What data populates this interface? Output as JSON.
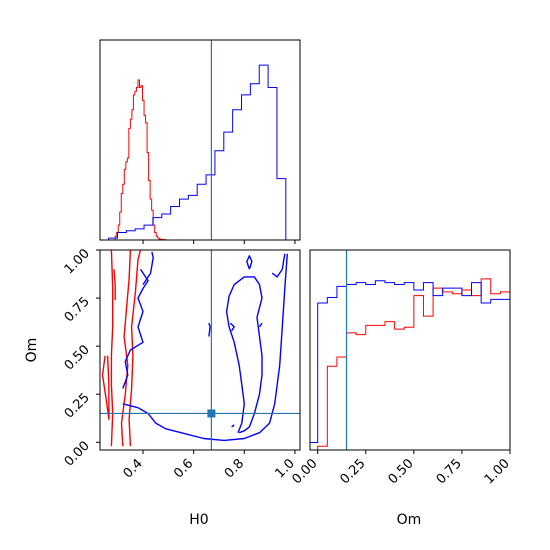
{
  "chart_data": {
    "type": "corner",
    "parameters": [
      "H0",
      "Om"
    ],
    "axis_labels": {
      "x": [
        "H0",
        "Om"
      ],
      "y": [
        "Om"
      ]
    },
    "truth": {
      "H0": 0.67,
      "Om": 0.15,
      "color": "#1f77b4"
    },
    "colors": {
      "red_series": "#ff0000",
      "blue_series": "#0000ff",
      "truth": "#1f77b4"
    },
    "panels": [
      {
        "id": "hist-H0",
        "type": "step-histogram",
        "x_range": [
          0.23,
          1.02
        ],
        "xticks": [
          0.4,
          0.6,
          0.8,
          1.0
        ],
        "tick_labels_shown": false,
        "series": [
          {
            "color": "#ff0000",
            "bin_edges": [
              0.29,
              0.296,
              0.302,
              0.308,
              0.314,
              0.32,
              0.326,
              0.332,
              0.338,
              0.344,
              0.35,
              0.356,
              0.362,
              0.368,
              0.374,
              0.38,
              0.386,
              0.392,
              0.398,
              0.404,
              0.41,
              0.416,
              0.422,
              0.428,
              0.434,
              0.44,
              0.446,
              0.452,
              0.458,
              0.464,
              0.47,
              0.476,
              0.482,
              0.488,
              0.494
            ],
            "counts": [
              0.02,
              0.04,
              0.08,
              0.15,
              0.25,
              0.3,
              0.38,
              0.42,
              0.44,
              0.6,
              0.65,
              0.7,
              0.78,
              0.8,
              0.82,
              0.86,
              0.82,
              0.83,
              0.75,
              0.67,
              0.63,
              0.47,
              0.32,
              0.22,
              0.16,
              0.08,
              0.04,
              0.02,
              0.01,
              0.005,
              0.005,
              0.002,
              0.002,
              0.001
            ]
          },
          {
            "color": "#0000ff",
            "bin_edges": [
              0.23,
              0.264,
              0.299,
              0.334,
              0.369,
              0.404,
              0.439,
              0.474,
              0.509,
              0.544,
              0.579,
              0.614,
              0.649,
              0.684,
              0.719,
              0.754,
              0.789,
              0.824,
              0.859,
              0.894,
              0.929,
              0.964,
              1.0
            ],
            "counts": [
              0.0,
              0.01,
              0.04,
              0.05,
              0.06,
              0.08,
              0.12,
              0.14,
              0.18,
              0.22,
              0.24,
              0.3,
              0.35,
              0.48,
              0.58,
              0.7,
              0.78,
              0.84,
              0.94,
              0.82,
              0.33,
              0.0
            ]
          }
        ]
      },
      {
        "id": "scatter-H0-Om",
        "type": "contour",
        "x_range": [
          0.23,
          1.02
        ],
        "y_range": [
          -0.04,
          1.0
        ],
        "xticks": [
          0.4,
          0.6,
          0.8,
          1.0
        ],
        "xtick_labels": [
          "0.4",
          "0.6",
          "0.8",
          "1.0"
        ],
        "yticks": [
          0.0,
          0.25,
          0.5,
          0.75,
          1.0
        ],
        "ytick_labels": [
          "0.00",
          "0.25",
          "0.50",
          "0.75",
          "1.00"
        ],
        "contours": [
          {
            "color": "#ff0000",
            "points": [
              [
                0.275,
                -0.02
              ],
              [
                0.28,
                0.15
              ],
              [
                0.275,
                0.3
              ],
              [
                0.275,
                0.45
              ],
              [
                0.28,
                0.6
              ],
              [
                0.28,
                0.8
              ],
              [
                0.275,
                1.0
              ]
            ]
          },
          {
            "color": "#ff0000",
            "points": [
              [
                0.25,
                0.45
              ],
              [
                0.24,
                0.35
              ],
              [
                0.255,
                0.22
              ],
              [
                0.265,
                0.12
              ],
              [
                0.265,
                0.3
              ],
              [
                0.26,
                0.45
              ]
            ]
          },
          {
            "color": "#ff0000",
            "points": [
              [
                0.35,
                -0.02
              ],
              [
                0.345,
                0.12
              ],
              [
                0.355,
                0.28
              ],
              [
                0.36,
                0.45
              ],
              [
                0.355,
                0.6
              ],
              [
                0.37,
                0.78
              ],
              [
                0.38,
                0.95
              ],
              [
                0.39,
                1.0
              ]
            ]
          },
          {
            "color": "#ff0000",
            "points": [
              [
                0.32,
                -0.02
              ],
              [
                0.315,
                0.1
              ],
              [
                0.33,
                0.25
              ],
              [
                0.34,
                0.4
              ],
              [
                0.325,
                0.55
              ],
              [
                0.335,
                0.7
              ],
              [
                0.345,
                0.85
              ],
              [
                0.35,
                1.0
              ]
            ]
          },
          {
            "color": "#ff0000",
            "points": [
              [
                0.285,
                0.9
              ],
              [
                0.29,
                0.82
              ],
              [
                0.29,
                0.74
              ]
            ]
          },
          {
            "color": "#0000ff",
            "points": [
              [
                0.4,
                0.82
              ],
              [
                0.43,
                0.88
              ],
              [
                0.44,
                0.96
              ],
              [
                0.435,
                0.99
              ]
            ]
          },
          {
            "color": "#0000ff",
            "points": [
              [
                0.32,
                0.2
              ],
              [
                0.38,
                0.18
              ],
              [
                0.42,
                0.15
              ],
              [
                0.45,
                0.1
              ],
              [
                0.49,
                0.07
              ],
              [
                0.55,
                0.05
              ],
              [
                0.64,
                0.02
              ],
              [
                0.72,
                0.01
              ],
              [
                0.8,
                0.02
              ],
              [
                0.86,
                0.05
              ],
              [
                0.9,
                0.1
              ],
              [
                0.92,
                0.2
              ],
              [
                0.94,
                0.4
              ],
              [
                0.95,
                0.6
              ],
              [
                0.96,
                0.8
              ],
              [
                0.97,
                0.98
              ]
            ]
          },
          {
            "color": "#0000ff",
            "points": [
              [
                0.32,
                0.28
              ],
              [
                0.34,
                0.35
              ],
              [
                0.33,
                0.42
              ],
              [
                0.35,
                0.48
              ],
              [
                0.4,
                0.52
              ],
              [
                0.38,
                0.6
              ],
              [
                0.4,
                0.68
              ],
              [
                0.38,
                0.75
              ],
              [
                0.4,
                0.8
              ],
              [
                0.42,
                0.84
              ],
              [
                0.39,
                0.9
              ]
            ]
          },
          {
            "color": "#0000ff",
            "points": [
              [
                0.775,
                0.05
              ],
              [
                0.79,
                0.1
              ],
              [
                0.8,
                0.2
              ],
              [
                0.79,
                0.3
              ],
              [
                0.78,
                0.4
              ],
              [
                0.76,
                0.52
              ],
              [
                0.74,
                0.6
              ],
              [
                0.73,
                0.68
              ],
              [
                0.74,
                0.76
              ],
              [
                0.76,
                0.82
              ],
              [
                0.8,
                0.86
              ],
              [
                0.84,
                0.86
              ],
              [
                0.86,
                0.82
              ],
              [
                0.87,
                0.75
              ],
              [
                0.85,
                0.65
              ],
              [
                0.86,
                0.55
              ],
              [
                0.87,
                0.45
              ],
              [
                0.87,
                0.35
              ],
              [
                0.86,
                0.25
              ],
              [
                0.84,
                0.15
              ],
              [
                0.82,
                0.08
              ],
              [
                0.8,
                0.06
              ],
              [
                0.78,
                0.05
              ]
            ]
          },
          {
            "color": "#0000ff",
            "points": [
              [
                0.91,
                0.88
              ],
              [
                0.93,
                0.86
              ],
              [
                0.95,
                0.9
              ],
              [
                0.96,
                0.98
              ]
            ]
          },
          {
            "color": "#0000ff",
            "points": [
              [
                0.82,
                0.9
              ],
              [
                0.83,
                0.94
              ],
              [
                0.82,
                0.97
              ],
              [
                0.81,
                0.94
              ],
              [
                0.82,
                0.9
              ]
            ]
          },
          {
            "color": "#0000ff",
            "points": [
              [
                0.75,
                0.58
              ],
              [
                0.76,
                0.6
              ],
              [
                0.745,
                0.62
              ]
            ]
          },
          {
            "color": "#0000ff",
            "points": [
              [
                0.66,
                0.55
              ],
              [
                0.665,
                0.6
              ],
              [
                0.66,
                0.62
              ]
            ]
          },
          {
            "color": "#0000ff",
            "points": [
              [
                0.86,
                0.6
              ],
              [
                0.87,
                0.62
              ]
            ]
          },
          {
            "color": "#0000ff",
            "points": [
              [
                0.75,
                0.08
              ],
              [
                0.76,
                0.09
              ]
            ]
          }
        ]
      },
      {
        "id": "hist-Om",
        "type": "step-histogram",
        "x_range": [
          -0.04,
          1.0
        ],
        "xticks": [
          0.0,
          0.25,
          0.5,
          0.75,
          1.0
        ],
        "xtick_labels": [
          "0.00",
          "0.25",
          "0.50",
          "0.75",
          "1.00"
        ],
        "series": [
          {
            "color": "#ff0000",
            "bin_edges": [
              0.0,
              0.05,
              0.1,
              0.15,
              0.2,
              0.25,
              0.3,
              0.35,
              0.4,
              0.45,
              0.5,
              0.55,
              0.6,
              0.65,
              0.7,
              0.75,
              0.8,
              0.85,
              0.9,
              0.95,
              1.0
            ],
            "counts": [
              0.02,
              0.45,
              0.5,
              0.63,
              0.62,
              0.67,
              0.67,
              0.69,
              0.65,
              0.66,
              0.83,
              0.72,
              0.87,
              0.85,
              0.84,
              0.86,
              0.83,
              0.92,
              0.84,
              0.85
            ]
          },
          {
            "color": "#0000ff",
            "bin_edges": [
              -0.04,
              0.0,
              0.05,
              0.1,
              0.15,
              0.2,
              0.25,
              0.3,
              0.35,
              0.4,
              0.45,
              0.5,
              0.55,
              0.6,
              0.65,
              0.7,
              0.75,
              0.8,
              0.85,
              0.9,
              0.95,
              1.0
            ],
            "counts": [
              0.04,
              0.79,
              0.82,
              0.88,
              0.89,
              0.9,
              0.89,
              0.91,
              0.9,
              0.89,
              0.9,
              0.86,
              0.9,
              0.83,
              0.87,
              0.87,
              0.83,
              0.9,
              0.79,
              0.81,
              0.81
            ]
          }
        ]
      }
    ]
  }
}
